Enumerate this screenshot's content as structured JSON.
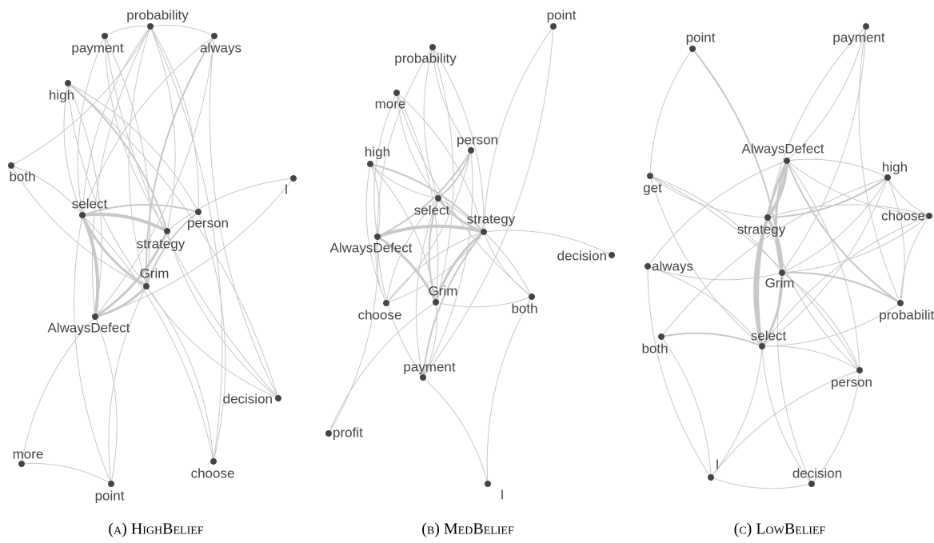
{
  "panels": [
    {
      "caption": "(a) HighBelief",
      "nodes": [
        {
          "label": "probability"
        },
        {
          "label": "payment"
        },
        {
          "label": "always"
        },
        {
          "label": "high"
        },
        {
          "label": "both"
        },
        {
          "label": "l"
        },
        {
          "label": "select"
        },
        {
          "label": "person"
        },
        {
          "label": "strategy"
        },
        {
          "label": "Grim"
        },
        {
          "label": "AlwaysDefect"
        },
        {
          "label": "decision"
        },
        {
          "label": "more"
        },
        {
          "label": "point"
        },
        {
          "label": "choose"
        }
      ]
    },
    {
      "caption": "(b) MedBelief",
      "nodes": [
        {
          "label": "point"
        },
        {
          "label": "probability"
        },
        {
          "label": "more"
        },
        {
          "label": "person"
        },
        {
          "label": "high"
        },
        {
          "label": "select"
        },
        {
          "label": "strategy"
        },
        {
          "label": "AlwaysDefect"
        },
        {
          "label": "decision"
        },
        {
          "label": "choose"
        },
        {
          "label": "Grim"
        },
        {
          "label": "both"
        },
        {
          "label": "payment"
        },
        {
          "label": "profit"
        },
        {
          "label": "l"
        }
      ]
    },
    {
      "caption": "(c) LowBelief",
      "nodes": [
        {
          "label": "point"
        },
        {
          "label": "payment"
        },
        {
          "label": "AlwaysDefect"
        },
        {
          "label": "high"
        },
        {
          "label": "get"
        },
        {
          "label": "choose"
        },
        {
          "label": "strategy"
        },
        {
          "label": "always"
        },
        {
          "label": "Grim"
        },
        {
          "label": "probability"
        },
        {
          "label": "both"
        },
        {
          "label": "select"
        },
        {
          "label": "person"
        },
        {
          "label": "l"
        },
        {
          "label": "decision"
        }
      ]
    }
  ]
}
